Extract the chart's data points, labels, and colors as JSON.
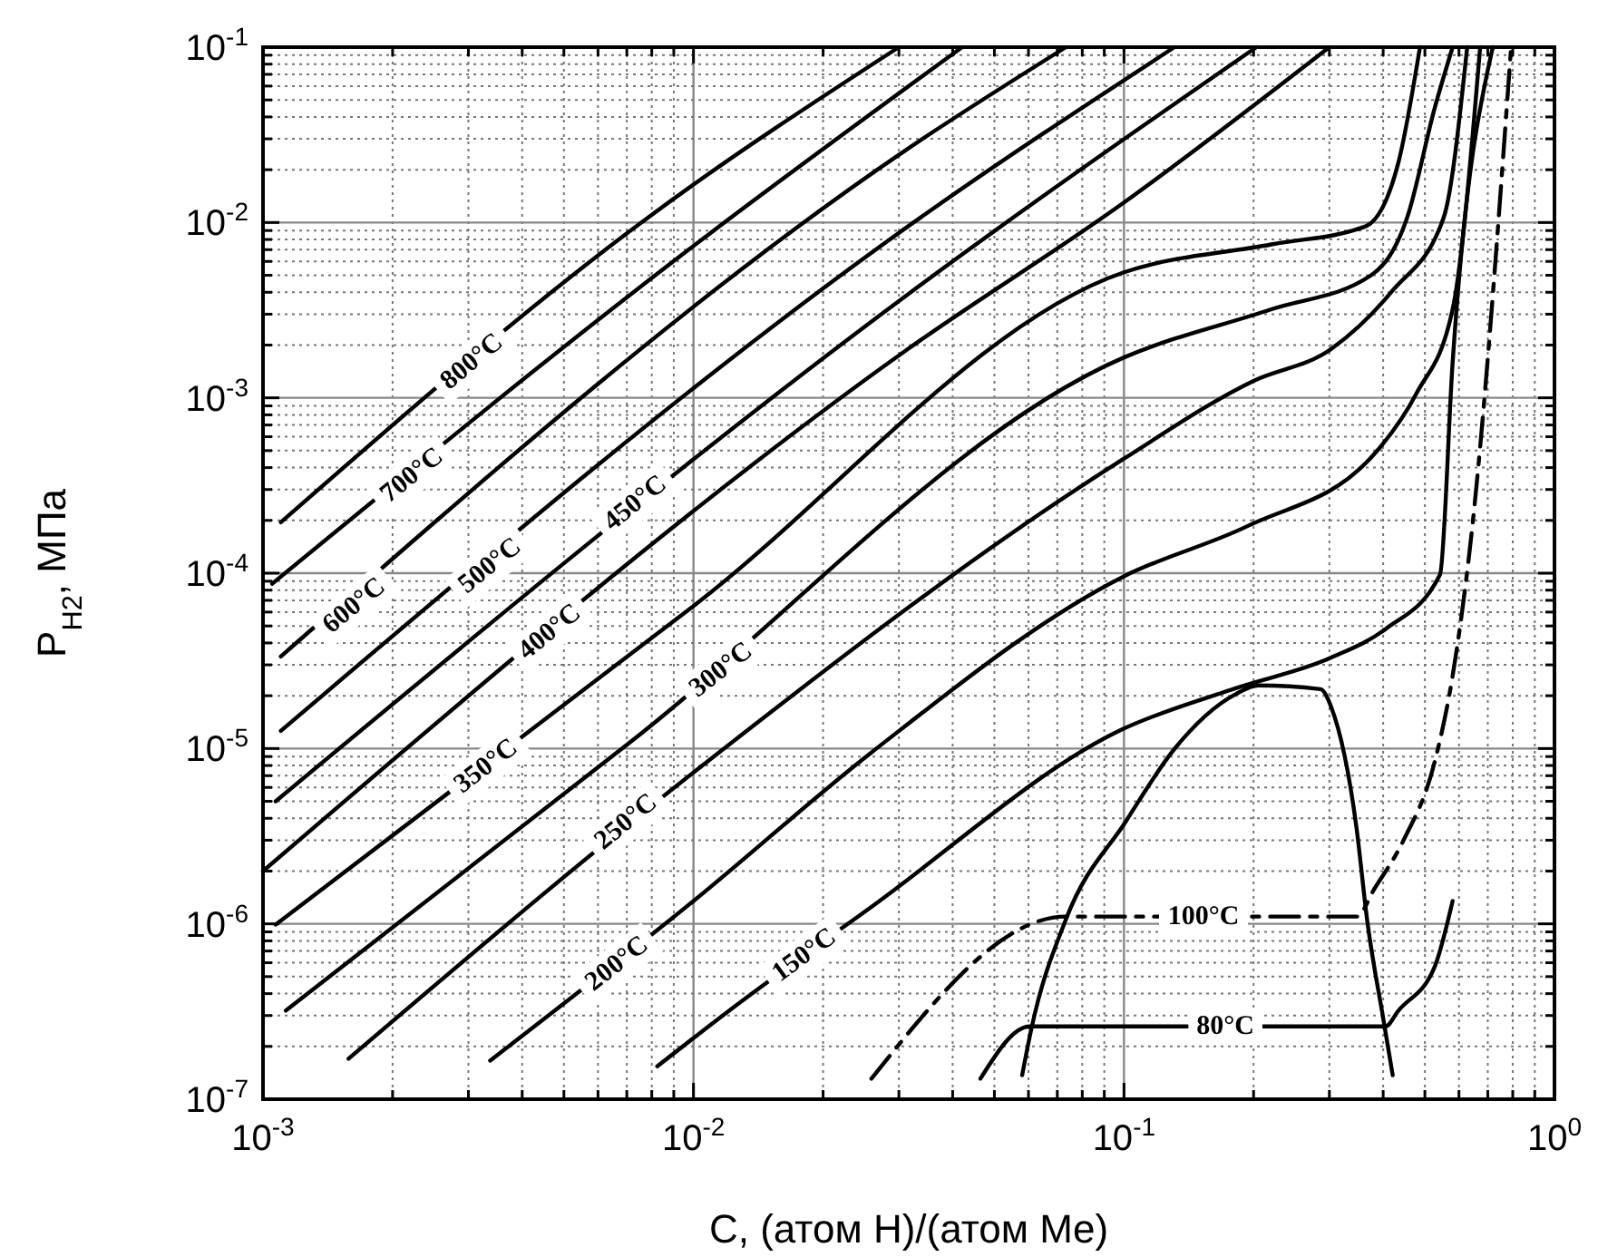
{
  "chart_data": {
    "type": "line",
    "xlabel": "C, (атом H)/(атом Me)",
    "ylabel": "P$_{H2}$, МПа",
    "log": "xy",
    "grid": true,
    "xlim": [
      0.001,
      1
    ],
    "ylim": [
      1e-07,
      0.1
    ],
    "xticks": [
      {
        "value": 0.001,
        "label": "10$^{-3}$"
      },
      {
        "value": 0.002,
        "label": null
      },
      {
        "value": 0.003,
        "label": null
      },
      {
        "value": 0.004,
        "label": null
      },
      {
        "value": 0.005,
        "label": null
      },
      {
        "value": 0.006,
        "label": null
      },
      {
        "value": 0.007,
        "label": null
      },
      {
        "value": 0.008,
        "label": null
      },
      {
        "value": 0.009,
        "label": null
      },
      {
        "value": 0.01,
        "label": "10$^{-2}$"
      },
      {
        "value": 0.02,
        "label": null
      },
      {
        "value": 0.03,
        "label": null
      },
      {
        "value": 0.04,
        "label": null
      },
      {
        "value": 0.05,
        "label": null
      },
      {
        "value": 0.06,
        "label": null
      },
      {
        "value": 0.07,
        "label": null
      },
      {
        "value": 0.08,
        "label": null
      },
      {
        "value": 0.09,
        "label": null
      },
      {
        "value": 0.1,
        "label": "10$^{-1}$"
      },
      {
        "value": 0.2,
        "label": null
      },
      {
        "value": 0.3,
        "label": null
      },
      {
        "value": 0.4,
        "label": null
      },
      {
        "value": 0.5,
        "label": null
      },
      {
        "value": 0.6,
        "label": null
      },
      {
        "value": 0.7,
        "label": null
      },
      {
        "value": 0.8,
        "label": null
      },
      {
        "value": 0.9,
        "label": null
      },
      {
        "value": 1,
        "label": "10$^{0}$"
      }
    ],
    "yticks": [
      {
        "value": 1e-07,
        "label": "10$^{-7}$"
      },
      {
        "value": 2e-07,
        "label": null
      },
      {
        "value": 3e-07,
        "label": null
      },
      {
        "value": 4e-07,
        "label": null
      },
      {
        "value": 5e-07,
        "label": null
      },
      {
        "value": 6e-07,
        "label": null
      },
      {
        "value": 7e-07,
        "label": null
      },
      {
        "value": 8e-07,
        "label": null
      },
      {
        "value": 9e-07,
        "label": null
      },
      {
        "value": 1e-06,
        "label": "10$^{-6}$"
      },
      {
        "value": 2e-06,
        "label": null
      },
      {
        "value": 3e-06,
        "label": null
      },
      {
        "value": 4e-06,
        "label": null
      },
      {
        "value": 5e-06,
        "label": null
      },
      {
        "value": 6e-06,
        "label": null
      },
      {
        "value": 7e-06,
        "label": null
      },
      {
        "value": 8e-06,
        "label": null
      },
      {
        "value": 9e-06,
        "label": null
      },
      {
        "value": 1e-05,
        "label": "10$^{-5}$"
      },
      {
        "value": 2e-05,
        "label": null
      },
      {
        "value": 3e-05,
        "label": null
      },
      {
        "value": 4e-05,
        "label": null
      },
      {
        "value": 5e-05,
        "label": null
      },
      {
        "value": 6e-05,
        "label": null
      },
      {
        "value": 7e-05,
        "label": null
      },
      {
        "value": 8e-05,
        "label": null
      },
      {
        "value": 9e-05,
        "label": null
      },
      {
        "value": 0.0001,
        "label": "10$^{-4}$"
      },
      {
        "value": 0.0002,
        "label": null
      },
      {
        "value": 0.0003,
        "label": null
      },
      {
        "value": 0.0004,
        "label": null
      },
      {
        "value": 0.0005,
        "label": null
      },
      {
        "value": 0.0006,
        "label": null
      },
      {
        "value": 0.0007,
        "label": null
      },
      {
        "value": 0.0008,
        "label": null
      },
      {
        "value": 0.0009,
        "label": null
      },
      {
        "value": 0.001,
        "label": "10$^{-3}$"
      },
      {
        "value": 0.002,
        "label": null
      },
      {
        "value": 0.003,
        "label": null
      },
      {
        "value": 0.004,
        "label": null
      },
      {
        "value": 0.005,
        "label": null
      },
      {
        "value": 0.006,
        "label": null
      },
      {
        "value": 0.007,
        "label": null
      },
      {
        "value": 0.008,
        "label": null
      },
      {
        "value": 0.009,
        "label": null
      },
      {
        "value": 0.01,
        "label": "10$^{-2}$"
      },
      {
        "value": 0.02,
        "label": null
      },
      {
        "value": 0.03,
        "label": null
      },
      {
        "value": 0.04,
        "label": null
      },
      {
        "value": 0.05,
        "label": null
      },
      {
        "value": 0.06,
        "label": null
      },
      {
        "value": 0.07,
        "label": null
      },
      {
        "value": 0.08,
        "label": null
      },
      {
        "value": 0.09,
        "label": null
      },
      {
        "value": 0.1,
        "label": "10$^{-1}$"
      }
    ],
    "series": [
      {
        "color": "#000000",
        "x": [
          0.0011,
          0.00785,
          0.03
        ],
        "values": [
          0.000195,
          0.0107,
          0.1
        ]
      },
      {
        "color": "#000000",
        "x": [
          0.00105,
          0.00982,
          0.0421
        ],
        "values": [
          8.7e-05,
          0.0071,
          0.1
        ]
      },
      {
        "color": "#000000",
        "x": [
          0.0011,
          0.0315,
          0.0733
        ],
        "values": [
          3.35e-05,
          0.0264,
          0.1
        ]
      },
      {
        "color": "#000000",
        "x": [
          0.0011,
          0.0315,
          0.131
        ],
        "values": [
          1.26e-05,
          0.0095,
          0.1
        ]
      },
      {
        "color": "#000000",
        "x": [
          0.00107,
          0.0315,
          0.203
        ],
        "values": [
          5e-06,
          0.0039,
          0.1
        ]
      },
      {
        "color": "#000000",
        "x": [
          0.001,
          0.0315,
          0.1,
          0.3
        ],
        "values": [
          2e-06,
          0.0019,
          0.013,
          0.1
        ]
      },
      {
        "color": "#000000",
        "x": [
          0.00107,
          0.01,
          0.1,
          0.22,
          0.364,
          0.434,
          0.487
        ],
        "values": [
          9.9e-07,
          6.5e-05,
          0.0052,
          0.0075,
          0.0095,
          0.022,
          0.1
        ]
      },
      {
        "color": "#000000",
        "x": [
          0.00113,
          0.007,
          0.1,
          0.22,
          0.375,
          0.455,
          0.527,
          0.58
        ],
        "values": [
          3.2e-07,
          1.05e-05,
          0.0017,
          0.0032,
          0.005,
          0.0107,
          0.045,
          0.1
        ]
      },
      {
        "color": "#000000",
        "x": [
          0.00158,
          0.01,
          0.1,
          0.2,
          0.303,
          0.421,
          0.553,
          0.627
        ],
        "values": [
          1.7e-07,
          7.3e-06,
          0.00045,
          0.00125,
          0.0019,
          0.0041,
          0.0107,
          0.1
        ]
      },
      {
        "color": "#000000",
        "x": [
          0.00337,
          0.01,
          0.0259,
          0.1,
          0.194,
          0.382,
          0.478,
          0.58,
          0.672
        ],
        "values": [
          1.66e-07,
          1.35e-06,
          9.5e-06,
          9.6e-05,
          0.000186,
          0.00048,
          0.00106,
          0.0032,
          0.1
        ]
      },
      {
        "color": "#000000",
        "x": [
          0.00824,
          0.0119,
          0.0259,
          0.1,
          0.181,
          0.303,
          0.405,
          0.542,
          0.58,
          0.719
        ],
        "values": [
          1.54e-07,
          3.1e-07,
          1.25e-06,
          1.3e-05,
          2.2e-05,
          3.3e-05,
          4.8e-05,
          9.8e-05,
          0.00159,
          0.1
        ]
      },
      {
        "color": "#000000",
        "line_style": "dashdot",
        "x": [
          0.0259,
          0.0733,
          0.347,
          0.382,
          0.447,
          0.527,
          0.58,
          0.64,
          0.793
        ],
        "values": [
          1.31e-07,
          1.1e-06,
          1.1e-06,
          1.59e-06,
          3.03e-06,
          8.4e-06,
          2.6e-05,
          0.000158,
          0.1
        ]
      },
      {
        "color": "#000000",
        "x": [
          0.0464,
          0.0604,
          0.405,
          0.434,
          0.527,
          0.58
        ],
        "values": [
          1.31e-07,
          2.6e-07,
          2.6e-07,
          3.2e-07,
          5.7e-07,
          1.35e-06
        ]
      },
      {
        "color": "#000000",
        "x": [
          0.058,
          0.061,
          0.0733,
          0.101,
          0.131,
          0.181,
          0.205,
          0.286,
          0.303,
          0.347,
          0.367,
          0.401,
          0.421
        ],
        "values": [
          1.37e-07,
          2.55e-07,
          1.06e-06,
          3.84e-06,
          9.95e-06,
          2.03e-05,
          2.29e-05,
          2.18e-05,
          1.72e-05,
          3.5e-06,
          1.06e-06,
          2.8e-07,
          1.37e-07
        ]
      }
    ],
    "annotations": [
      {
        "text": "800°C",
        "x": 0.00306,
        "y": 0.0016
      },
      {
        "text": "700°C",
        "x": 0.00222,
        "y": 0.00036
      },
      {
        "text": "600°C",
        "x": 0.00163,
        "y": 6.5e-05
      },
      {
        "text": "500°C",
        "x": 0.00337,
        "y": 0.00011
      },
      {
        "text": "450°C",
        "x": 0.00733,
        "y": 0.00025
      },
      {
        "text": "400°C",
        "x": 0.00464,
        "y": 4.6e-05
      },
      {
        "text": "350°C",
        "x": 0.0033,
        "y": 7.9e-06
      },
      {
        "text": "300°C",
        "x": 0.0116,
        "y": 2.8e-05
      },
      {
        "text": "250°C",
        "x": 0.00698,
        "y": 3.8e-06
      },
      {
        "text": "200°C",
        "x": 0.00665,
        "y": 5.9e-07
      },
      {
        "text": "150°C",
        "x": 0.0181,
        "y": 6.6e-07
      },
      {
        "text": "100°C",
        "x": 0.153,
        "y": 1.1e-06
      },
      {
        "text": "80°C",
        "x": 0.172,
        "y": 2.6e-07
      }
    ]
  }
}
